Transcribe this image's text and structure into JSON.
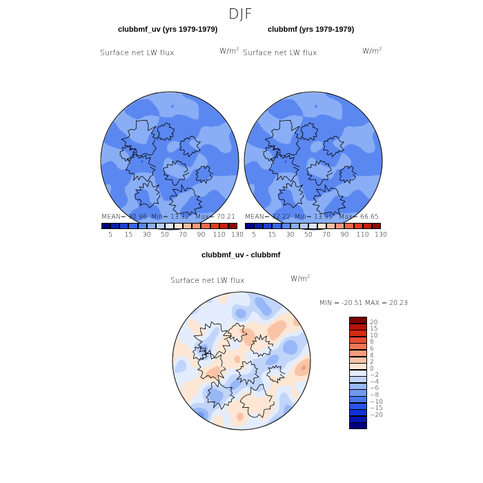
{
  "season": "DJF",
  "field_label": "Surface net LW flux",
  "units": {
    "base": "W/m",
    "exp": "2"
  },
  "panels": [
    {
      "title": "clubbmf_uv (yrs 1979-1979)",
      "stats": {
        "mean_label": "MEAN=",
        "mean": "30.96",
        "min_label": "Min=",
        "min": "13.32",
        "max_label": "Max=",
        "max": "70.21"
      }
    },
    {
      "title": "clubbmf (yrs 1979-1979)",
      "stats": {
        "mean_label": "MEAN=",
        "mean": "32.22",
        "min_label": "Min=",
        "min": "13.95",
        "max_label": "Max=",
        "max": "66.65"
      }
    }
  ],
  "diff_panel": {
    "title": "clubbmf_uv - clubbmf",
    "stats_text": "MIN = -20.51  MAX =  20.23"
  },
  "top_colorbar": {
    "colors": [
      "#00007f",
      "#0a1fae",
      "#1e40d8",
      "#3b66e8",
      "#5b87f0",
      "#8aaef5",
      "#b8cff8",
      "#dfe9fc",
      "#fde6d4",
      "#f9c0a0",
      "#f59a78",
      "#ee6a4a",
      "#e04020",
      "#c52010",
      "#8a0a05"
    ],
    "labels": [
      "5",
      "15",
      "30",
      "50",
      "70",
      "90",
      "110",
      "130"
    ]
  },
  "diff_colorbar": {
    "colors": [
      "#00007f",
      "#0716b5",
      "#0f32d8",
      "#2a55e6",
      "#4b78ee",
      "#7199f2",
      "#98b7f6",
      "#c1d5fa",
      "#e4edfd",
      "#fde6d4",
      "#f8c3a6",
      "#f49c7c",
      "#ef7655",
      "#e54e33",
      "#d52a14",
      "#b81209",
      "#7f0000"
    ],
    "labels": [
      "20",
      "15",
      "10",
      "8",
      "6",
      "4",
      "2",
      "0",
      "−2",
      "−4",
      "−6",
      "−8",
      "−10",
      "−15",
      "−20"
    ]
  }
}
